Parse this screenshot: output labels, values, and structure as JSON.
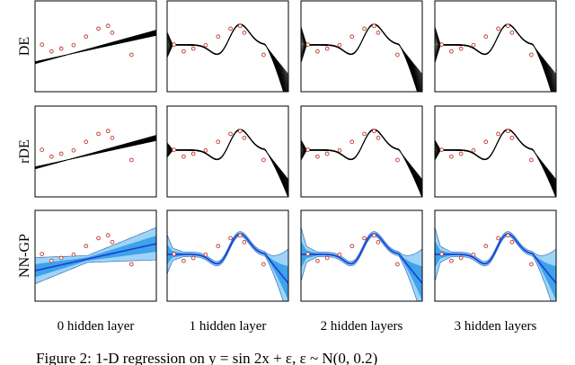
{
  "chart_data": {
    "type": "line",
    "rows": [
      {
        "label": "DE",
        "style": "ensemble",
        "fan": 1.0
      },
      {
        "label": "rDE",
        "style": "ensemble",
        "fan": 0.55
      },
      {
        "label": "NN-GP",
        "style": "gp",
        "fan": 1.0
      }
    ],
    "columns": [
      {
        "label": "0 hidden layer",
        "model": "linear",
        "spread": 1.0
      },
      {
        "label": "1 hidden layer",
        "model": "nonlinear",
        "spread": 0.7
      },
      {
        "label": "2 hidden layers",
        "model": "nonlinear",
        "spread": 1.0
      },
      {
        "label": "3 hidden layers",
        "model": "nonlinear",
        "spread": 1.0
      }
    ],
    "x_range": [
      -2.2,
      2.2
    ],
    "y_range": [
      -1.6,
      1.6
    ],
    "points": [
      {
        "x": -1.95,
        "y": 0.06
      },
      {
        "x": -1.6,
        "y": -0.18
      },
      {
        "x": -1.25,
        "y": -0.08
      },
      {
        "x": -0.8,
        "y": 0.04
      },
      {
        "x": -0.35,
        "y": 0.34
      },
      {
        "x": 0.1,
        "y": 0.62
      },
      {
        "x": 0.45,
        "y": 0.72
      },
      {
        "x": 0.6,
        "y": 0.48
      },
      {
        "x": 1.3,
        "y": -0.3
      }
    ],
    "linear_fit": {
      "slope": 0.24,
      "intercept": -0.05
    },
    "ensemble_members": 40,
    "colors": {
      "ensemble": "#000000",
      "gp_mean": "#1a3fd6",
      "gp_band_outer": "#9fd4f7",
      "gp_band_inner": "#3ea3ea",
      "point_edge": "#c0392b"
    }
  },
  "caption": "Figure 2:  1-D regression on y = sin 2x + ε, ε ~ N(0, 0.2)"
}
